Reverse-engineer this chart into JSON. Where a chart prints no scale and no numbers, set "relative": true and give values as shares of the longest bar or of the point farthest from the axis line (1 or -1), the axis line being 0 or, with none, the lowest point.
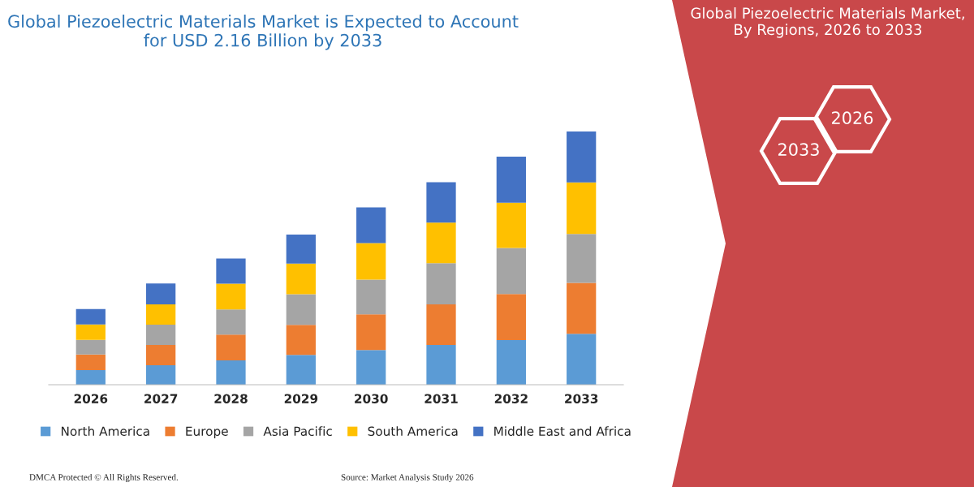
{
  "chart_data": {
    "type": "bar",
    "stacked": true,
    "relative": true,
    "title": "Global Piezoelectric Materials Market is Expected to Account for USD 2.16 Billion by 2033",
    "categories": [
      "2026",
      "2027",
      "2028",
      "2029",
      "2030",
      "2031",
      "2032",
      "2033"
    ],
    "series": [
      {
        "name": "North America",
        "color": "#5b9bd5",
        "values": [
          0.058,
          0.077,
          0.096,
          0.118,
          0.137,
          0.157,
          0.176,
          0.201
        ]
      },
      {
        "name": "Europe",
        "color": "#ed7d31",
        "values": [
          0.061,
          0.08,
          0.102,
          0.118,
          0.141,
          0.16,
          0.182,
          0.201
        ]
      },
      {
        "name": "Asia Pacific",
        "color": "#a5a5a5",
        "values": [
          0.058,
          0.08,
          0.099,
          0.121,
          0.137,
          0.163,
          0.182,
          0.193
        ]
      },
      {
        "name": "South America",
        "color": "#ffc000",
        "values": [
          0.061,
          0.08,
          0.102,
          0.121,
          0.144,
          0.16,
          0.179,
          0.204
        ]
      },
      {
        "name": "Middle East and Africa",
        "color": "#4472c4",
        "values": [
          0.061,
          0.083,
          0.099,
          0.115,
          0.141,
          0.16,
          0.182,
          0.201
        ]
      }
    ],
    "legend": "bottom",
    "grid": false,
    "tick_labels": "x",
    "annotations": [
      "Global Piezoelectric Materials Market, By Regions, 2026 to 2033",
      "2026",
      "2033",
      "DMCA Protected © All Rights Reserved.",
      "Source: Market Analysis Study 2026"
    ]
  }
}
